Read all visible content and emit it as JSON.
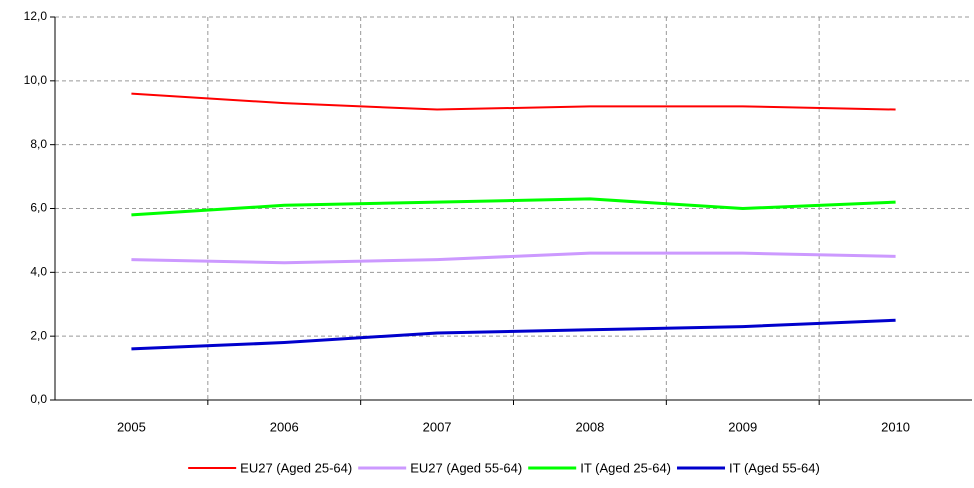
{
  "chart_data": {
    "type": "line",
    "categories": [
      "2005",
      "2006",
      "2007",
      "2008",
      "2009",
      "2010"
    ],
    "series": [
      {
        "name": "EU27 (Aged 25-64)",
        "color": "#ff0000",
        "values": [
          9.6,
          9.3,
          9.1,
          9.2,
          9.2,
          9.1
        ]
      },
      {
        "name": "EU27 (Aged 55-64)",
        "color": "#cc99ff",
        "values": [
          4.4,
          4.3,
          4.4,
          4.6,
          4.6,
          4.5
        ]
      },
      {
        "name": "IT (Aged 25-64)",
        "color": "#00ff00",
        "values": [
          5.8,
          6.1,
          6.2,
          6.3,
          6.0,
          6.2
        ]
      },
      {
        "name": "IT (Aged 55-64)",
        "color": "#0000cc",
        "values": [
          1.6,
          1.8,
          2.1,
          2.2,
          2.3,
          2.5
        ]
      }
    ],
    "ylim": [
      0,
      12
    ],
    "yticks": [
      {
        "value": 0,
        "label": "0,0"
      },
      {
        "value": 2,
        "label": "2,0"
      },
      {
        "value": 4,
        "label": "4,0"
      },
      {
        "value": 6,
        "label": "6,0"
      },
      {
        "value": 8,
        "label": "8,0"
      },
      {
        "value": 10,
        "label": "10,0"
      },
      {
        "value": 12,
        "label": "12,0"
      }
    ],
    "grid": true,
    "legend": "bottom"
  }
}
